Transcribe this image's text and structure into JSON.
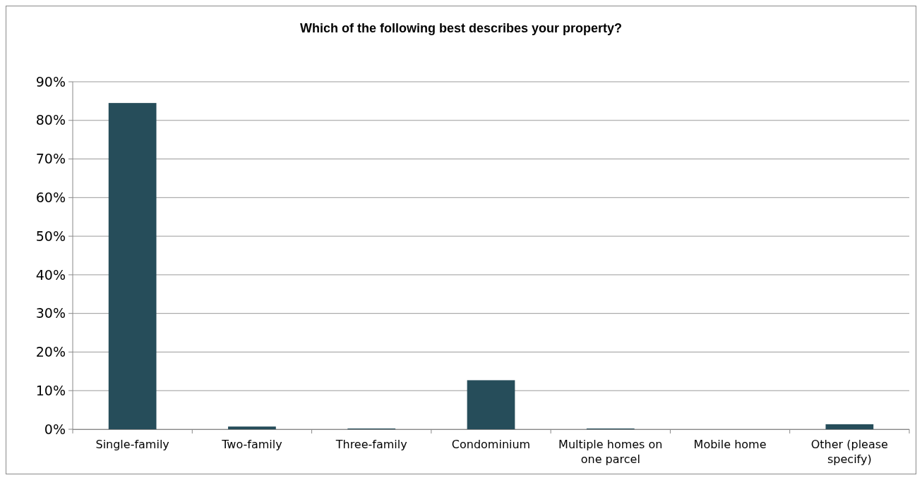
{
  "chart_data": {
    "type": "bar",
    "title": "Which of the following best describes your property?",
    "categories": [
      "Single-family",
      "Two-family",
      "Three-family",
      "Condominium",
      "Multiple homes on one parcel",
      "Mobile home",
      "Other (please specify)"
    ],
    "values": [
      84.5,
      0.7,
      0.2,
      12.7,
      0.2,
      0,
      1.3
    ],
    "color": "#264d5a",
    "ylim": [
      0,
      90
    ],
    "yticks": [
      {
        "value": 0,
        "label": "0%"
      },
      {
        "value": 10,
        "label": "10%"
      },
      {
        "value": 20,
        "label": "20%"
      },
      {
        "value": 30,
        "label": "30%"
      },
      {
        "value": 40,
        "label": "40%"
      },
      {
        "value": 50,
        "label": "50%"
      },
      {
        "value": 60,
        "label": "60%"
      },
      {
        "value": 70,
        "label": "70%"
      },
      {
        "value": 80,
        "label": "80%"
      },
      {
        "value": 90,
        "label": "90%"
      }
    ],
    "grid": "y"
  }
}
